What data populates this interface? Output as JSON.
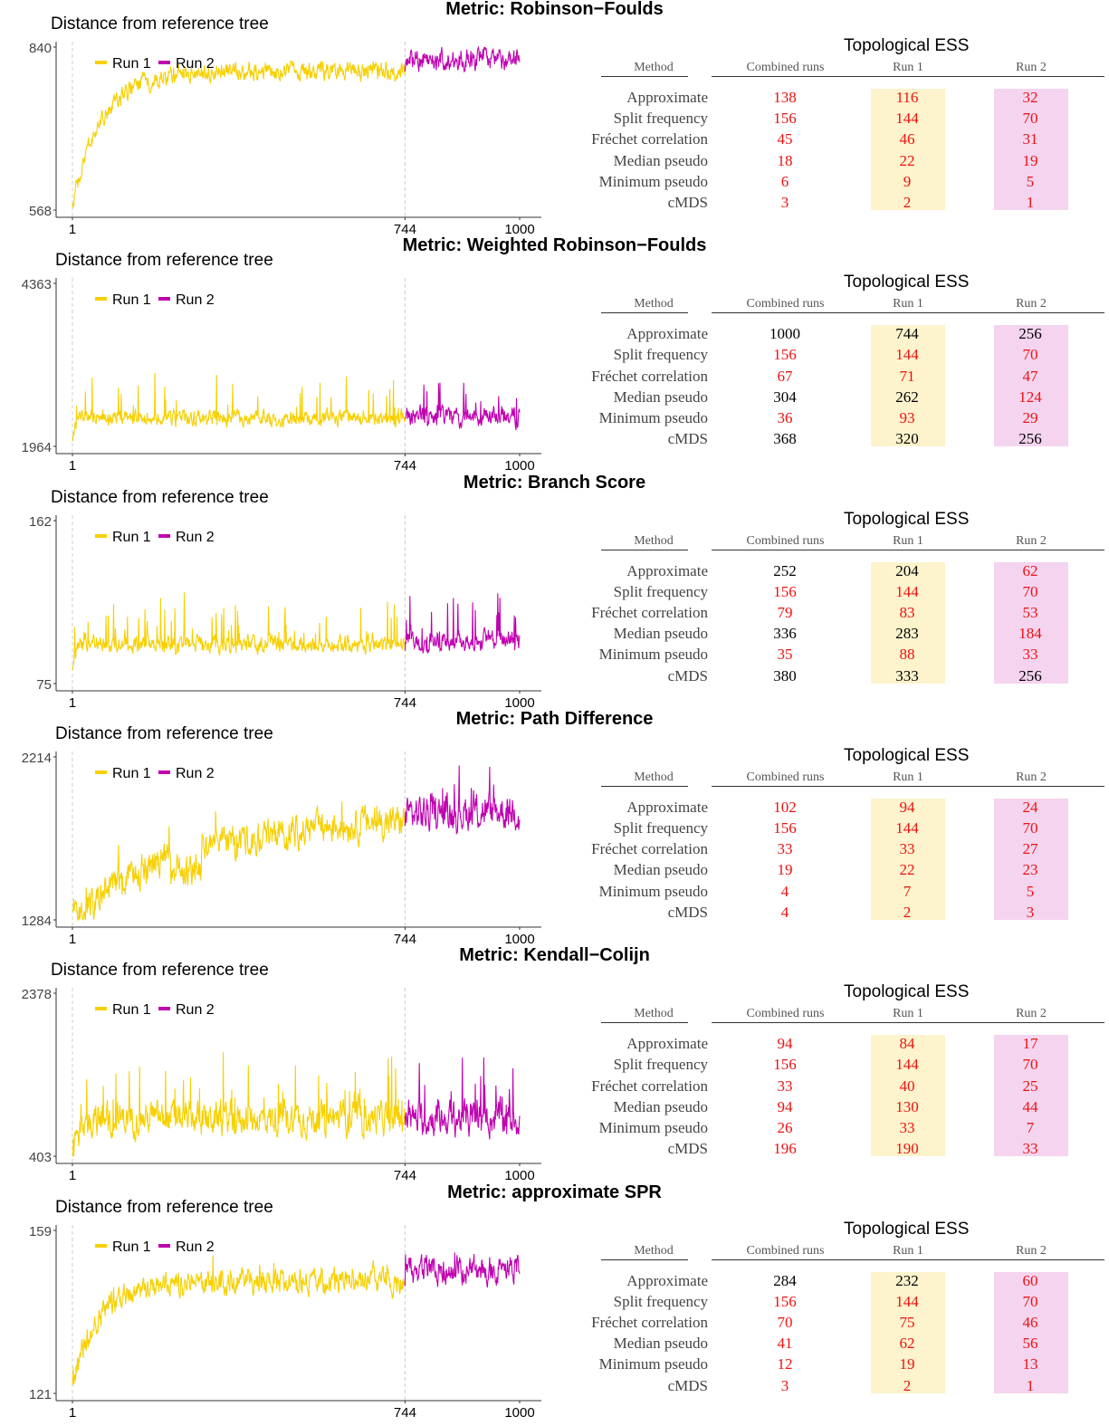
{
  "legend": {
    "run1": "Run 1",
    "run2": "Run 2"
  },
  "colors": {
    "run1": "#f7d000",
    "run2": "#c000b0",
    "red": "#ee1111",
    "black": "#000000",
    "band1": "#fdf3cc",
    "band2": "#f5d4ef"
  },
  "y_axis_title": "Distance from reference tree",
  "table": {
    "title": "Topological ESS",
    "headers": [
      "Method",
      "Combined runs",
      "Run 1",
      "Run 2"
    ],
    "methods": [
      "Approximate",
      "Split frequency",
      "Fréchet correlation",
      "Median pseudo",
      "Minimum pseudo",
      "cMDS"
    ]
  },
  "chart_data": [
    {
      "type": "line",
      "title": "Metric: Robinson−Foulds",
      "ylabel": "Distance from reference tree",
      "ylim": [
        568,
        840
      ],
      "x_ticks": [
        "1",
        "744",
        "1000"
      ],
      "x_range": [
        1,
        1000
      ],
      "split_at": 744,
      "series": [
        {
          "name": "Run 1",
          "x_range": [
            1,
            744
          ]
        },
        {
          "name": "Run 2",
          "x_range": [
            745,
            1000
          ]
        }
      ],
      "trace": {
        "start": 568,
        "plateau": 800,
        "rise": 65,
        "noise": 12,
        "spike": 0.0,
        "spikeAmp": 0,
        "run2Shift": 20,
        "run2Noise": 14,
        "dip": 0
      },
      "ess": {
        "combined": [
          138,
          156,
          45,
          18,
          6,
          3
        ],
        "run1": [
          116,
          144,
          46,
          22,
          9,
          2
        ],
        "run2": [
          32,
          70,
          31,
          19,
          5,
          1
        ],
        "red": {
          "combined": [
            1,
            1,
            1,
            1,
            1,
            1
          ],
          "run1": [
            1,
            1,
            1,
            1,
            1,
            1
          ],
          "run2": [
            1,
            1,
            1,
            1,
            1,
            1
          ]
        }
      }
    },
    {
      "type": "line",
      "title": "Metric: Weighted Robinson−Foulds",
      "ylabel": "Distance from reference tree",
      "ylim": [
        1964,
        4363
      ],
      "x_ticks": [
        "1",
        "744",
        "1000"
      ],
      "x_range": [
        1,
        1000
      ],
      "split_at": 744,
      "series": [
        {
          "name": "Run 1",
          "x_range": [
            1,
            744
          ]
        },
        {
          "name": "Run 2",
          "x_range": [
            745,
            1000
          ]
        }
      ],
      "trace": {
        "start": 2050,
        "plateau": 2380,
        "rise": 6,
        "noise": 90,
        "spike": 0.06,
        "spikeAmp": 700,
        "run2Shift": 20,
        "run2Noise": 110,
        "dip": 0
      },
      "ess": {
        "combined": [
          1000,
          156,
          67,
          304,
          36,
          368
        ],
        "run1": [
          744,
          144,
          71,
          262,
          93,
          320
        ],
        "run2": [
          256,
          70,
          47,
          124,
          29,
          256
        ],
        "red": {
          "combined": [
            0,
            1,
            1,
            0,
            1,
            0
          ],
          "run1": [
            0,
            1,
            1,
            0,
            1,
            0
          ],
          "run2": [
            0,
            1,
            1,
            1,
            1,
            0
          ]
        }
      }
    },
    {
      "type": "line",
      "title": "Metric: Branch Score",
      "ylabel": "Distance from reference tree",
      "ylim": [
        75,
        162
      ],
      "x_ticks": [
        "1",
        "744",
        "1000"
      ],
      "x_range": [
        1,
        1000
      ],
      "split_at": 744,
      "series": [
        {
          "name": "Run 1",
          "x_range": [
            1,
            744
          ]
        },
        {
          "name": "Run 2",
          "x_range": [
            745,
            1000
          ]
        }
      ],
      "trace": {
        "start": 80,
        "plateau": 96,
        "rise": 6,
        "noise": 3.5,
        "spike": 0.06,
        "spikeAmp": 25,
        "run2Shift": 2,
        "run2Noise": 4,
        "dip": 0
      },
      "ess": {
        "combined": [
          252,
          156,
          79,
          336,
          35,
          380
        ],
        "run1": [
          204,
          144,
          83,
          283,
          88,
          333
        ],
        "run2": [
          62,
          70,
          53,
          184,
          33,
          256
        ],
        "red": {
          "combined": [
            0,
            1,
            1,
            0,
            1,
            0
          ],
          "run1": [
            0,
            1,
            1,
            0,
            1,
            0
          ],
          "run2": [
            1,
            1,
            1,
            1,
            1,
            0
          ]
        }
      }
    },
    {
      "type": "line",
      "title": "Metric: Path Difference",
      "ylabel": "Distance from reference tree",
      "ylim": [
        1284,
        2214
      ],
      "x_ticks": [
        "1",
        "744",
        "1000"
      ],
      "x_range": [
        1,
        1000
      ],
      "split_at": 744,
      "series": [
        {
          "name": "Run 1",
          "x_range": [
            1,
            744
          ]
        },
        {
          "name": "Run 2",
          "x_range": [
            745,
            1000
          ]
        }
      ],
      "trace": {
        "start": 1300,
        "plateau": 1880,
        "rise": 260,
        "noise": 70,
        "spike": 0.04,
        "spikeAmp": 160,
        "run2Shift": 40,
        "run2Noise": 80,
        "dip": 1
      },
      "ess": {
        "combined": [
          102,
          156,
          33,
          19,
          4,
          4
        ],
        "run1": [
          94,
          144,
          33,
          22,
          7,
          2
        ],
        "run2": [
          24,
          70,
          27,
          23,
          5,
          3
        ],
        "red": {
          "combined": [
            1,
            1,
            1,
            1,
            1,
            1
          ],
          "run1": [
            1,
            1,
            1,
            1,
            1,
            1
          ],
          "run2": [
            1,
            1,
            1,
            1,
            1,
            1
          ]
        }
      }
    },
    {
      "type": "line",
      "title": "Metric: Kendall−Colijn",
      "ylabel": "Distance from reference tree",
      "ylim": [
        403,
        2378
      ],
      "x_ticks": [
        "1",
        "744",
        "1000"
      ],
      "x_range": [
        1,
        1000
      ],
      "split_at": 744,
      "series": [
        {
          "name": "Run 1",
          "x_range": [
            1,
            744
          ]
        },
        {
          "name": "Run 2",
          "x_range": [
            745,
            1000
          ]
        }
      ],
      "trace": {
        "start": 450,
        "plateau": 860,
        "rise": 20,
        "noise": 150,
        "spike": 0.06,
        "spikeAmp": 700,
        "run2Shift": 0,
        "run2Noise": 160,
        "dip": 0
      },
      "ess": {
        "combined": [
          94,
          156,
          33,
          94,
          26,
          196
        ],
        "run1": [
          84,
          144,
          40,
          130,
          33,
          190
        ],
        "run2": [
          17,
          70,
          25,
          44,
          7,
          33
        ],
        "red": {
          "combined": [
            1,
            1,
            1,
            1,
            1,
            1
          ],
          "run1": [
            1,
            1,
            1,
            1,
            1,
            1
          ],
          "run2": [
            1,
            1,
            1,
            1,
            1,
            1
          ]
        }
      }
    },
    {
      "type": "line",
      "title": "Metric: approximate SPR",
      "ylabel": "Distance from reference tree",
      "ylim": [
        121,
        159
      ],
      "x_ticks": [
        "1",
        "744",
        "1000"
      ],
      "x_range": [
        1,
        1000
      ],
      "split_at": 744,
      "series": [
        {
          "name": "Run 1",
          "x_range": [
            1,
            744
          ]
        },
        {
          "name": "Run 2",
          "x_range": [
            745,
            1000
          ]
        }
      ],
      "trace": {
        "start": 123,
        "plateau": 147,
        "rise": 60,
        "noise": 2.2,
        "spike": 0.03,
        "spikeAmp": 4,
        "run2Shift": 3,
        "run2Noise": 2.5,
        "dip": 0
      },
      "ess": {
        "combined": [
          284,
          156,
          70,
          41,
          12,
          3
        ],
        "run1": [
          232,
          144,
          75,
          62,
          19,
          2
        ],
        "run2": [
          60,
          70,
          46,
          56,
          13,
          1
        ],
        "red": {
          "combined": [
            0,
            1,
            1,
            1,
            1,
            1
          ],
          "run1": [
            0,
            1,
            1,
            1,
            1,
            1
          ],
          "run2": [
            1,
            1,
            1,
            1,
            1,
            1
          ]
        }
      }
    }
  ]
}
